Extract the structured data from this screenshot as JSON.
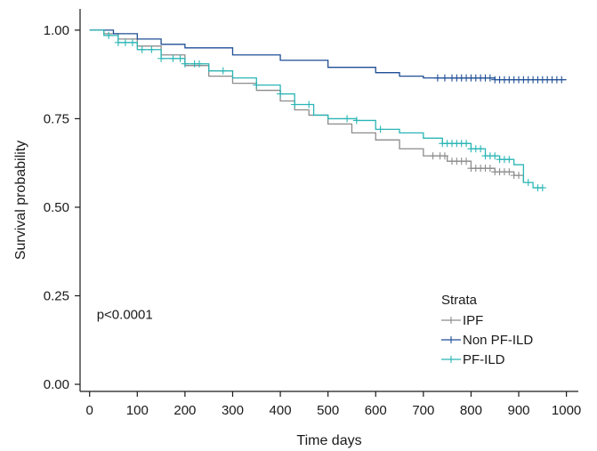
{
  "chart_data": {
    "type": "line",
    "subtype": "kaplan-meier survival curve",
    "title": "",
    "xlabel": "Time days",
    "ylabel": "Survival probability",
    "xlim": [
      -20,
      1025
    ],
    "ylim": [
      -0.02,
      1.06
    ],
    "xticks": [
      0,
      100,
      200,
      300,
      400,
      500,
      600,
      700,
      800,
      900,
      1000
    ],
    "yticks": [
      0.0,
      0.25,
      0.5,
      0.75,
      1.0
    ],
    "ytick_labels": [
      "0.00",
      "0.25",
      "0.50",
      "0.75",
      "1.00"
    ],
    "annotation": "p<0.0001",
    "grid": false,
    "legend": {
      "title": "Strata",
      "position": "bottom-right"
    },
    "series": [
      {
        "name": "IPF",
        "color": "#8c8c8c",
        "points": [
          [
            0,
            1.0
          ],
          [
            30,
            0.99
          ],
          [
            60,
            0.975
          ],
          [
            100,
            0.955
          ],
          [
            150,
            0.93
          ],
          [
            200,
            0.9
          ],
          [
            250,
            0.87
          ],
          [
            300,
            0.85
          ],
          [
            350,
            0.83
          ],
          [
            400,
            0.8
          ],
          [
            430,
            0.775
          ],
          [
            460,
            0.76
          ],
          [
            500,
            0.735
          ],
          [
            550,
            0.71
          ],
          [
            600,
            0.69
          ],
          [
            650,
            0.665
          ],
          [
            700,
            0.645
          ],
          [
            750,
            0.63
          ],
          [
            800,
            0.61
          ],
          [
            850,
            0.6
          ],
          [
            890,
            0.59
          ],
          [
            910,
            0.57
          ]
        ],
        "censor_times": [
          720,
          735,
          745,
          760,
          770,
          780,
          790,
          800,
          810,
          820,
          830,
          840,
          850,
          860,
          870,
          880,
          890,
          900
        ]
      },
      {
        "name": "Non PF-ILD",
        "color": "#1f4e96",
        "points": [
          [
            0,
            1.0
          ],
          [
            50,
            0.99
          ],
          [
            100,
            0.975
          ],
          [
            150,
            0.96
          ],
          [
            200,
            0.95
          ],
          [
            300,
            0.93
          ],
          [
            400,
            0.915
          ],
          [
            500,
            0.895
          ],
          [
            600,
            0.88
          ],
          [
            650,
            0.87
          ],
          [
            700,
            0.865
          ],
          [
            750,
            0.865
          ],
          [
            800,
            0.865
          ],
          [
            850,
            0.86
          ],
          [
            1000,
            0.86
          ]
        ],
        "censor_times": [
          730,
          745,
          760,
          770,
          780,
          790,
          800,
          810,
          820,
          830,
          840,
          850,
          860,
          870,
          880,
          890,
          900,
          910,
          920,
          930,
          940,
          950,
          960,
          970,
          980,
          990
        ]
      },
      {
        "name": "PF-ILD",
        "color": "#2bb5b5",
        "points": [
          [
            0,
            1.0
          ],
          [
            30,
            0.985
          ],
          [
            60,
            0.965
          ],
          [
            100,
            0.945
          ],
          [
            150,
            0.92
          ],
          [
            200,
            0.905
          ],
          [
            250,
            0.885
          ],
          [
            300,
            0.865
          ],
          [
            350,
            0.845
          ],
          [
            400,
            0.82
          ],
          [
            430,
            0.79
          ],
          [
            470,
            0.76
          ],
          [
            500,
            0.75
          ],
          [
            560,
            0.745
          ],
          [
            600,
            0.72
          ],
          [
            650,
            0.71
          ],
          [
            700,
            0.695
          ],
          [
            740,
            0.68
          ],
          [
            800,
            0.665
          ],
          [
            830,
            0.645
          ],
          [
            860,
            0.635
          ],
          [
            890,
            0.62
          ],
          [
            910,
            0.57
          ],
          [
            930,
            0.555
          ],
          [
            950,
            0.555
          ]
        ],
        "censor_times": [
          40,
          60,
          75,
          90,
          110,
          130,
          150,
          175,
          190,
          200,
          220,
          230,
          280,
          350,
          400,
          430,
          460,
          540,
          560,
          610,
          740,
          750,
          760,
          770,
          780,
          790,
          800,
          810,
          820,
          830,
          840,
          850,
          860,
          870,
          880,
          920,
          940,
          950
        ]
      }
    ]
  }
}
